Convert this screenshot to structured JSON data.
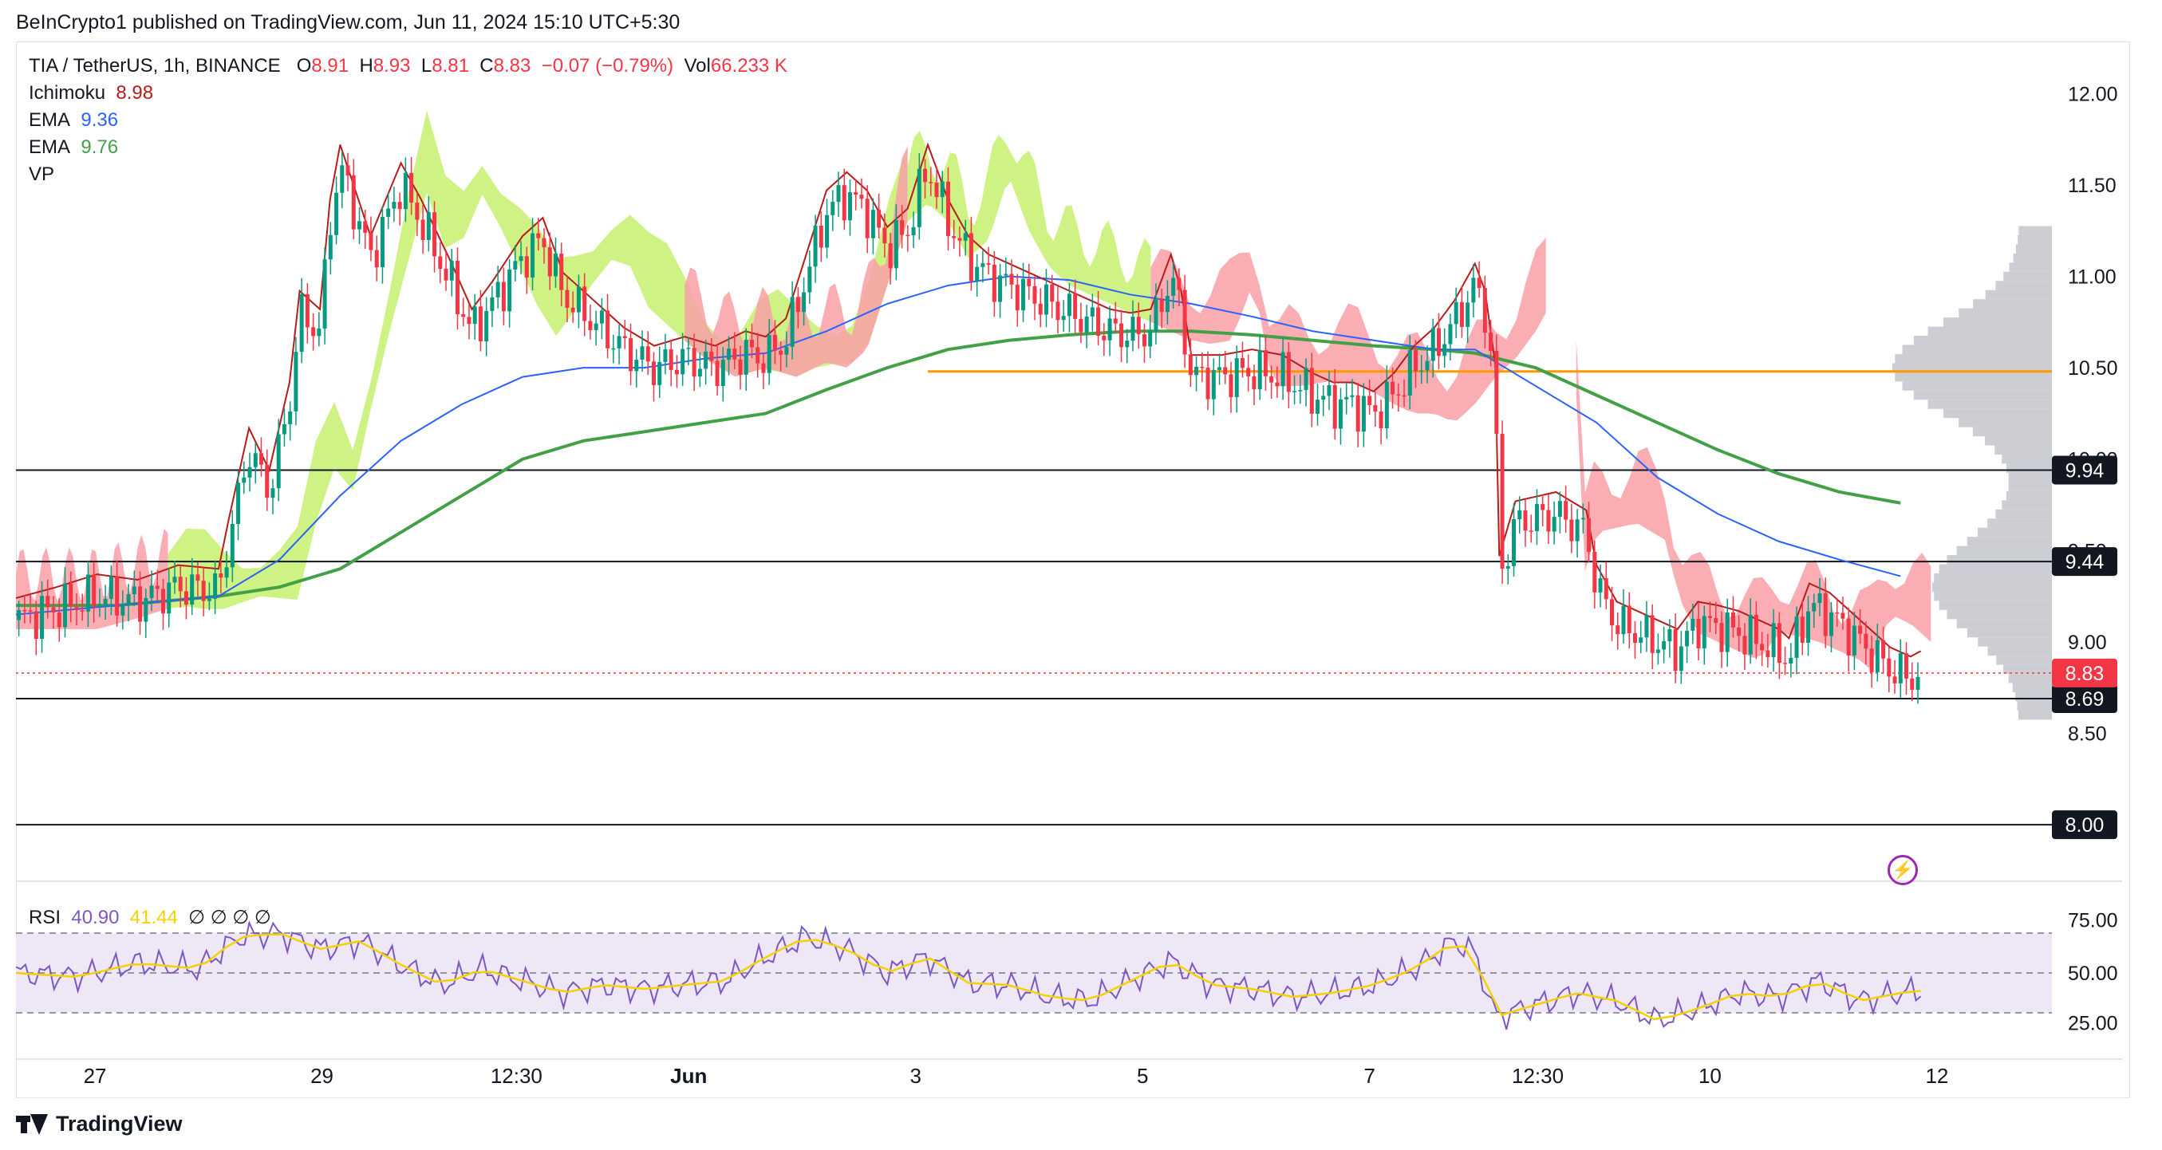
{
  "header": {
    "published": "BeInCrypto1 published on TradingView.com, Jun 11, 2024 15:10 UTC+5:30"
  },
  "legend": {
    "symbol": "TIA / TetherUS, 1h, BINANCE",
    "open_label": "O",
    "open": "8.91",
    "high_label": "H",
    "high": "8.93",
    "low_label": "L",
    "low": "8.81",
    "close_label": "C",
    "close": "8.83",
    "change": "−0.07 (−0.79%)",
    "vol_label": "Vol",
    "vol": "66.233 K",
    "ichimoku_label": "Ichimoku",
    "ichimoku_value": "8.98",
    "ema1_label": "EMA",
    "ema1_value": "9.36",
    "ema2_label": "EMA",
    "ema2_value": "9.76",
    "vp_label": "VP"
  },
  "rsi": {
    "label": "RSI",
    "value": "40.90",
    "ma": "41.44",
    "na_marks": "∅ ∅ ∅ ∅",
    "ticks": [
      "75.00",
      "50.00",
      "25.00"
    ]
  },
  "footer": {
    "brand": "TradingView"
  },
  "colors": {
    "up": "#089981",
    "down": "#f23645",
    "ema_short": "#2962ff",
    "ema_long": "#43a047",
    "cloud_bull": "#c5f06e",
    "cloud_bear": "#f9a0a6",
    "vp": "#c8c9ce",
    "poc": "#ff9800",
    "rsi": "#7e57c2",
    "rsi_ma": "#f5d100",
    "rsi_bg": "#ede7f6"
  },
  "icons": {
    "alert": "lightning-icon"
  },
  "chart_data": {
    "type": "candlestick",
    "title": "TIA / TetherUS, 1h, BINANCE",
    "y_ticks": [
      "12.00",
      "11.50",
      "11.00",
      "10.50",
      "10.00",
      "9.50",
      "9.00",
      "8.50"
    ],
    "y_range": [
      7.8,
      12.25
    ],
    "x_tick_labels": [
      "27",
      "29",
      "12:30",
      "Jun",
      "3",
      "5",
      "7",
      "12:30",
      "10",
      "12"
    ],
    "x_tick_positions": [
      0.039,
      0.151,
      0.247,
      0.332,
      0.444,
      0.556,
      0.668,
      0.751,
      0.836,
      0.948
    ],
    "horizontal_levels": [
      {
        "label": "9.94",
        "value": 9.94
      },
      {
        "label": "9.44",
        "value": 9.44
      },
      {
        "label": "8.69",
        "value": 8.69
      },
      {
        "label": "8.00",
        "value": 8.0
      }
    ],
    "last_price_label": "8.83",
    "last_price": 8.83,
    "poc_price": 10.48,
    "series": [
      {
        "name": "price",
        "points": [
          [
            0.0,
            9.12
          ],
          [
            0.02,
            9.18
          ],
          [
            0.04,
            9.25
          ],
          [
            0.06,
            9.22
          ],
          [
            0.08,
            9.3
          ],
          [
            0.1,
            9.28
          ],
          [
            0.105,
            9.55
          ],
          [
            0.115,
            10.05
          ],
          [
            0.125,
            9.82
          ],
          [
            0.135,
            10.3
          ],
          [
            0.14,
            10.8
          ],
          [
            0.15,
            10.7
          ],
          [
            0.155,
            11.3
          ],
          [
            0.16,
            11.6
          ],
          [
            0.175,
            11.1
          ],
          [
            0.19,
            11.5
          ],
          [
            0.2,
            11.3
          ],
          [
            0.215,
            10.95
          ],
          [
            0.225,
            10.7
          ],
          [
            0.235,
            10.85
          ],
          [
            0.25,
            11.1
          ],
          [
            0.26,
            11.2
          ],
          [
            0.27,
            10.9
          ],
          [
            0.285,
            10.75
          ],
          [
            0.3,
            10.6
          ],
          [
            0.315,
            10.5
          ],
          [
            0.33,
            10.55
          ],
          [
            0.345,
            10.5
          ],
          [
            0.36,
            10.58
          ],
          [
            0.37,
            10.55
          ],
          [
            0.38,
            10.65
          ],
          [
            0.39,
            11.0
          ],
          [
            0.4,
            11.35
          ],
          [
            0.41,
            11.45
          ],
          [
            0.42,
            11.35
          ],
          [
            0.43,
            11.15
          ],
          [
            0.44,
            11.25
          ],
          [
            0.45,
            11.6
          ],
          [
            0.46,
            11.3
          ],
          [
            0.47,
            11.1
          ],
          [
            0.48,
            11.0
          ],
          [
            0.49,
            10.95
          ],
          [
            0.5,
            10.9
          ],
          [
            0.51,
            10.85
          ],
          [
            0.52,
            10.8
          ],
          [
            0.53,
            10.75
          ],
          [
            0.54,
            10.7
          ],
          [
            0.55,
            10.68
          ],
          [
            0.56,
            10.7
          ],
          [
            0.57,
            11.0
          ],
          [
            0.575,
            10.8
          ],
          [
            0.58,
            10.45
          ],
          [
            0.595,
            10.45
          ],
          [
            0.61,
            10.48
          ],
          [
            0.625,
            10.45
          ],
          [
            0.64,
            10.35
          ],
          [
            0.65,
            10.3
          ],
          [
            0.66,
            10.3
          ],
          [
            0.67,
            10.25
          ],
          [
            0.68,
            10.35
          ],
          [
            0.69,
            10.5
          ],
          [
            0.7,
            10.6
          ],
          [
            0.71,
            10.75
          ],
          [
            0.72,
            10.95
          ],
          [
            0.725,
            10.8
          ],
          [
            0.73,
            10.4
          ],
          [
            0.732,
            9.35
          ],
          [
            0.74,
            9.65
          ],
          [
            0.76,
            9.7
          ],
          [
            0.775,
            9.6
          ],
          [
            0.78,
            9.3
          ],
          [
            0.79,
            9.1
          ],
          [
            0.8,
            9.05
          ],
          [
            0.81,
            9.0
          ],
          [
            0.82,
            8.95
          ],
          [
            0.83,
            9.1
          ],
          [
            0.84,
            9.08
          ],
          [
            0.85,
            9.05
          ],
          [
            0.86,
            9.0
          ],
          [
            0.87,
            8.95
          ],
          [
            0.875,
            8.9
          ],
          [
            0.885,
            9.2
          ],
          [
            0.895,
            9.15
          ],
          [
            0.905,
            9.05
          ],
          [
            0.915,
            8.95
          ],
          [
            0.925,
            8.85
          ],
          [
            0.935,
            8.8
          ],
          [
            0.94,
            8.83
          ]
        ]
      },
      {
        "name": "EMA 9.36",
        "points": [
          [
            0.0,
            9.15
          ],
          [
            0.05,
            9.2
          ],
          [
            0.1,
            9.25
          ],
          [
            0.13,
            9.45
          ],
          [
            0.16,
            9.8
          ],
          [
            0.19,
            10.1
          ],
          [
            0.22,
            10.3
          ],
          [
            0.25,
            10.45
          ],
          [
            0.28,
            10.5
          ],
          [
            0.31,
            10.5
          ],
          [
            0.34,
            10.55
          ],
          [
            0.37,
            10.58
          ],
          [
            0.4,
            10.7
          ],
          [
            0.43,
            10.85
          ],
          [
            0.46,
            10.95
          ],
          [
            0.49,
            11.0
          ],
          [
            0.52,
            10.98
          ],
          [
            0.55,
            10.9
          ],
          [
            0.58,
            10.85
          ],
          [
            0.61,
            10.78
          ],
          [
            0.64,
            10.7
          ],
          [
            0.67,
            10.65
          ],
          [
            0.7,
            10.6
          ],
          [
            0.72,
            10.6
          ],
          [
            0.75,
            10.4
          ],
          [
            0.78,
            10.2
          ],
          [
            0.81,
            9.9
          ],
          [
            0.84,
            9.7
          ],
          [
            0.87,
            9.55
          ],
          [
            0.9,
            9.45
          ],
          [
            0.93,
            9.36
          ]
        ]
      },
      {
        "name": "EMA 9.76",
        "points": [
          [
            0.0,
            9.2
          ],
          [
            0.05,
            9.2
          ],
          [
            0.1,
            9.25
          ],
          [
            0.13,
            9.3
          ],
          [
            0.16,
            9.4
          ],
          [
            0.19,
            9.6
          ],
          [
            0.22,
            9.8
          ],
          [
            0.25,
            10.0
          ],
          [
            0.28,
            10.1
          ],
          [
            0.31,
            10.15
          ],
          [
            0.34,
            10.2
          ],
          [
            0.37,
            10.25
          ],
          [
            0.4,
            10.38
          ],
          [
            0.43,
            10.5
          ],
          [
            0.46,
            10.6
          ],
          [
            0.49,
            10.65
          ],
          [
            0.52,
            10.68
          ],
          [
            0.55,
            10.7
          ],
          [
            0.58,
            10.7
          ],
          [
            0.61,
            10.68
          ],
          [
            0.64,
            10.65
          ],
          [
            0.67,
            10.62
          ],
          [
            0.7,
            10.6
          ],
          [
            0.72,
            10.58
          ],
          [
            0.75,
            10.5
          ],
          [
            0.78,
            10.35
          ],
          [
            0.81,
            10.2
          ],
          [
            0.84,
            10.05
          ],
          [
            0.87,
            9.92
          ],
          [
            0.9,
            9.82
          ],
          [
            0.93,
            9.76
          ]
        ]
      }
    ],
    "rsi_series": [
      [
        0.0,
        50
      ],
      [
        0.03,
        48
      ],
      [
        0.06,
        55
      ],
      [
        0.09,
        52
      ],
      [
        0.11,
        68
      ],
      [
        0.13,
        70
      ],
      [
        0.15,
        62
      ],
      [
        0.17,
        66
      ],
      [
        0.19,
        54
      ],
      [
        0.21,
        44
      ],
      [
        0.23,
        52
      ],
      [
        0.25,
        46
      ],
      [
        0.27,
        40
      ],
      [
        0.29,
        44
      ],
      [
        0.31,
        42
      ],
      [
        0.33,
        44
      ],
      [
        0.35,
        46
      ],
      [
        0.37,
        58
      ],
      [
        0.39,
        68
      ],
      [
        0.41,
        62
      ],
      [
        0.43,
        50
      ],
      [
        0.45,
        58
      ],
      [
        0.47,
        45
      ],
      [
        0.49,
        44
      ],
      [
        0.51,
        38
      ],
      [
        0.53,
        36
      ],
      [
        0.55,
        46
      ],
      [
        0.57,
        56
      ],
      [
        0.59,
        44
      ],
      [
        0.61,
        42
      ],
      [
        0.63,
        38
      ],
      [
        0.65,
        40
      ],
      [
        0.67,
        44
      ],
      [
        0.69,
        52
      ],
      [
        0.71,
        66
      ],
      [
        0.72,
        60
      ],
      [
        0.73,
        28
      ],
      [
        0.75,
        34
      ],
      [
        0.77,
        40
      ],
      [
        0.79,
        36
      ],
      [
        0.81,
        26
      ],
      [
        0.83,
        32
      ],
      [
        0.85,
        40
      ],
      [
        0.87,
        38
      ],
      [
        0.89,
        46
      ],
      [
        0.91,
        36
      ],
      [
        0.93,
        40
      ],
      [
        0.94,
        41
      ]
    ]
  }
}
